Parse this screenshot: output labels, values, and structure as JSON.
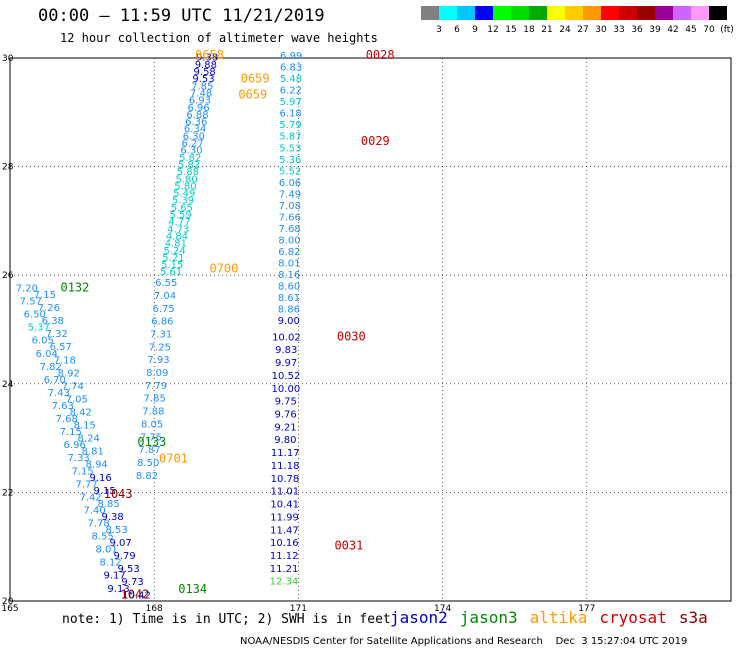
{
  "header": {
    "title": "00:00 – 11:59 UTC 11/21/2019",
    "subtitle": "12 hour collection of altimeter wave heights"
  },
  "colorbar": {
    "colors": [
      "#808080",
      "#00ffff",
      "#00c8ff",
      "#0000ff",
      "#00ff00",
      "#00dd00",
      "#00aa00",
      "#ffff00",
      "#ffcc00",
      "#ff9900",
      "#ff0000",
      "#cc0000",
      "#990000",
      "#990099",
      "#cc66ff",
      "#ff99ff",
      "#000000"
    ],
    "labels": [
      "3",
      "6",
      "9",
      "12",
      "15",
      "18",
      "21",
      "24",
      "27",
      "30",
      "33",
      "36",
      "39",
      "42",
      "45",
      "70",
      "(ft)"
    ]
  },
  "footer": {
    "note": "note: 1) Time is in UTC; 2) SWH is in feet",
    "credit": "NOAA/NESDIS Center for Satellite Applications and Research    Dec  3 15:27:04 UTC 2019",
    "satellites": [
      {
        "name": "jason2",
        "color": "#0000cc"
      },
      {
        "name": "jason3",
        "color": "#008800"
      },
      {
        "name": "altika",
        "color": "#ff9900"
      },
      {
        "name": "cryosat",
        "color": "#cc0000"
      },
      {
        "name": "s3a",
        "color": "#880000"
      }
    ]
  },
  "chart_data": {
    "type": "scatter",
    "xlim": [
      165,
      180
    ],
    "ylim": [
      20,
      30
    ],
    "x_ticks": [
      165,
      168,
      171,
      174,
      177
    ],
    "y_ticks": [
      20,
      22,
      24,
      26,
      28,
      30
    ],
    "grid": true,
    "tracks": [
      {
        "sat": "altika",
        "time": "0658",
        "tx": 168.85,
        "ty": 29.98,
        "x0": 169.1,
        "y0": 29.95,
        "x1": 168.35,
        "y1": 26.0,
        "values": [
          9.38,
          9.88,
          9.58,
          9.53,
          7.85,
          7.48,
          6.93,
          6.96,
          6.88,
          6.36,
          6.34,
          6.3,
          6.27,
          6.3,
          5.82,
          5.82,
          5.88,
          5.8,
          5.8,
          5.49,
          5.39,
          5.65,
          5.59,
          4.77,
          4.73,
          4.84,
          4.81,
          5.24,
          5.21,
          5.15,
          5.61
        ]
      },
      {
        "sat": "altika",
        "time": "0659",
        "tx": 169.8,
        "ty": 29.55,
        "x0": null,
        "y0": null,
        "x1": null,
        "y1": null,
        "values": []
      },
      {
        "sat": "altika",
        "time": "0659",
        "tx": 169.75,
        "ty": 29.25,
        "x0": null,
        "y0": null,
        "x1": null,
        "y1": null,
        "values": []
      },
      {
        "sat": "altika",
        "time": "0700",
        "tx": 169.15,
        "ty": 26.05,
        "x0": null,
        "y0": null,
        "x1": null,
        "y1": null,
        "values": []
      },
      {
        "sat": "altika",
        "time": "0701",
        "tx": 168.1,
        "ty": 22.55,
        "x0": 168.25,
        "y0": 25.8,
        "x1": 167.85,
        "y1": 22.25,
        "values": [
          6.55,
          7.04,
          6.75,
          6.86,
          7.31,
          7.25,
          7.93,
          8.09,
          7.79,
          7.85,
          7.88,
          8.05,
          7.75,
          7.87,
          8.5,
          8.82
        ]
      },
      {
        "sat": "cryosat",
        "time": "0028",
        "tx": 172.4,
        "ty": 29.98,
        "x0": 170.85,
        "y0": 29.98,
        "x1": 170.8,
        "y1": 25.1,
        "values": [
          6.99,
          6.83,
          5.48,
          6.22,
          5.97,
          6.18,
          5.79,
          5.87,
          5.53,
          5.36,
          5.52,
          6.06,
          7.49,
          7.08,
          7.66,
          7.68,
          8.0,
          6.82,
          8.01,
          8.16,
          8.6,
          8.61,
          8.86,
          9.0
        ]
      },
      {
        "sat": "cryosat",
        "time": "0029",
        "tx": 172.3,
        "ty": 28.4,
        "x0": null,
        "y0": null,
        "x1": null,
        "y1": null,
        "values": []
      },
      {
        "sat": "cryosat",
        "time": "0030",
        "tx": 171.8,
        "ty": 24.8,
        "x0": null,
        "y0": null,
        "x1": null,
        "y1": null,
        "values": []
      },
      {
        "sat": "cryosat",
        "time": "0031",
        "tx": 171.75,
        "ty": 20.95,
        "x0": 170.75,
        "y0": 24.8,
        "x1": 170.7,
        "y1": 20.3,
        "values": [
          10.02,
          9.83,
          9.97,
          10.52,
          10.0,
          9.75,
          9.76,
          9.21,
          9.8,
          11.17,
          11.18,
          10.78,
          11.01,
          10.41,
          11.99,
          11.47,
          10.16,
          11.12,
          11.21,
          12.34
        ]
      },
      {
        "sat": "jason3",
        "time": "0132",
        "tx": 166.05,
        "ty": 25.7,
        "x0": 165.35,
        "y0": 25.7,
        "x1": 167.3,
        "y1": 20.05,
        "values": [
          7.2,
          7.15,
          7.57,
          7.26,
          6.5,
          6.38,
          5.37,
          7.32,
          6.05,
          6.57,
          6.04,
          7.18,
          7.82,
          8.92,
          6.7,
          7.74,
          7.43,
          7.05,
          7.63,
          8.42,
          7.68,
          8.15,
          7.15,
          8.24,
          6.96,
          8.81,
          7.33,
          8.94,
          7.15,
          9.16,
          7.77,
          9.15,
          7.42,
          8.85,
          7.4,
          9.38,
          7.78,
          8.53,
          8.55,
          9.07,
          8.01,
          9.79,
          8.12,
          9.53,
          9.17,
          9.73,
          9.13,
          10.42
        ]
      },
      {
        "sat": "jason3",
        "time": "0133",
        "tx": 167.65,
        "ty": 22.85,
        "x0": null,
        "y0": null,
        "x1": null,
        "y1": null,
        "values": []
      },
      {
        "sat": "jason3",
        "time": "0134",
        "tx": 168.5,
        "ty": 20.15,
        "x0": null,
        "y0": null,
        "x1": null,
        "y1": null,
        "values": []
      },
      {
        "sat": "s3a",
        "time": "1043",
        "tx": 166.95,
        "ty": 21.9,
        "x0": null,
        "y0": null,
        "x1": null,
        "y1": null,
        "values": []
      },
      {
        "sat": "s3a",
        "time": "1042",
        "tx": 167.3,
        "ty": 20.05,
        "x0": null,
        "y0": null,
        "x1": null,
        "y1": null,
        "values": []
      }
    ]
  }
}
